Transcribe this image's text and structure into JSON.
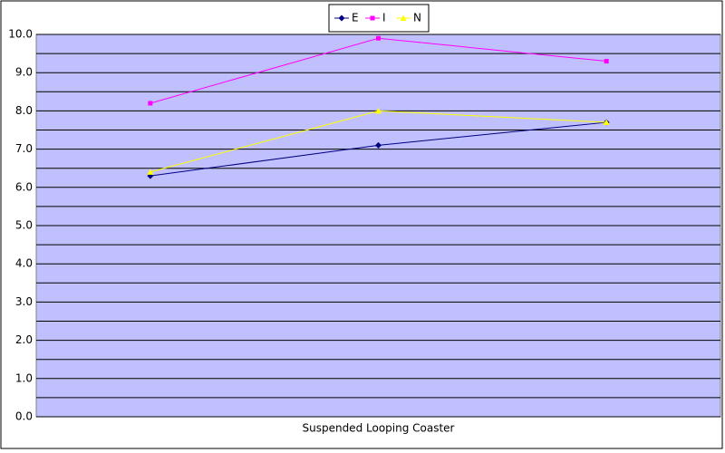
{
  "chart_data": {
    "type": "line",
    "categories": [
      null,
      "Suspended Looping Coaster",
      null
    ],
    "series": [
      {
        "name": "E",
        "color": "#000080",
        "marker": "diamond",
        "values": [
          6.3,
          7.1,
          7.7
        ]
      },
      {
        "name": "I",
        "color": "#ff00ff",
        "marker": "square",
        "values": [
          8.2,
          9.9,
          9.3
        ]
      },
      {
        "name": "N",
        "color": "#ffff00",
        "marker": "triangle",
        "values": [
          6.4,
          8.0,
          7.7
        ]
      }
    ],
    "ylim": [
      0,
      10
    ],
    "yticks": [
      {
        "value": 0,
        "label": "0.0"
      },
      {
        "value": 1,
        "label": "1.0"
      },
      {
        "value": 2,
        "label": "2.0"
      },
      {
        "value": 3,
        "label": "3.0"
      },
      {
        "value": 4,
        "label": "4.0"
      },
      {
        "value": 5,
        "label": "5.0"
      },
      {
        "value": 6,
        "label": "6.0"
      },
      {
        "value": 7,
        "label": "7.0"
      },
      {
        "value": 8,
        "label": "8.0"
      },
      {
        "value": 9,
        "label": "9.0"
      },
      {
        "value": 10,
        "label": "10.0"
      }
    ],
    "minor_yticks": [
      0.5,
      1.5,
      2.5,
      3.5,
      4.5,
      5.5,
      6.5,
      7.5,
      8.5,
      9.5
    ],
    "grid": true,
    "plot_background": "#c0c0ff",
    "legend": "top"
  }
}
